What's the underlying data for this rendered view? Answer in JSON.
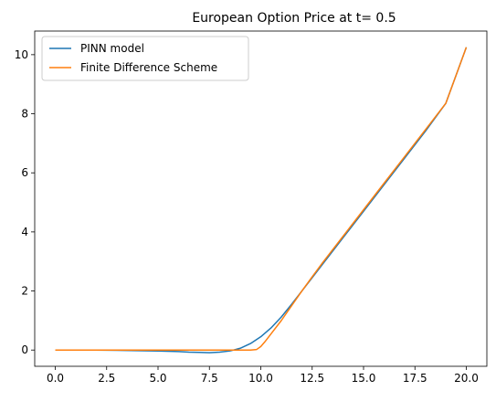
{
  "chart_data": {
    "type": "line",
    "title": "European Option Price at t= 0.5",
    "xlabel": "",
    "ylabel": "",
    "xlim": [
      -1.0,
      21.0
    ],
    "ylim": [
      -0.55,
      10.8
    ],
    "xticks": [
      0.0,
      2.5,
      5.0,
      7.5,
      10.0,
      12.5,
      15.0,
      17.5,
      20.0
    ],
    "xtick_labels": [
      "0.0",
      "2.5",
      "5.0",
      "7.5",
      "10.0",
      "12.5",
      "15.0",
      "17.5",
      "20.0"
    ],
    "yticks": [
      0,
      2,
      4,
      6,
      8,
      10
    ],
    "ytick_labels": [
      "0",
      "2",
      "4",
      "6",
      "8",
      "10"
    ],
    "grid": false,
    "legend_position": "upper-left",
    "series": [
      {
        "name": "PINN model",
        "color": "#1f77b4",
        "x": [
          0,
          1,
          2,
          3,
          4,
          5,
          6,
          6.5,
          7,
          7.5,
          8,
          8.5,
          9,
          9.5,
          10,
          10.5,
          11,
          11.5,
          12,
          12.5,
          13,
          14,
          15,
          16,
          17,
          18,
          19,
          20
        ],
        "y": [
          0.0,
          0.0,
          0.0,
          -0.01,
          -0.02,
          -0.03,
          -0.05,
          -0.07,
          -0.08,
          -0.09,
          -0.07,
          -0.03,
          0.06,
          0.22,
          0.45,
          0.75,
          1.12,
          1.55,
          2.0,
          2.45,
          2.9,
          3.8,
          4.7,
          5.6,
          6.5,
          7.4,
          8.35,
          10.25
        ]
      },
      {
        "name": "Finite Difference Scheme",
        "color": "#ff7f0e",
        "x": [
          0,
          2,
          4,
          6,
          8,
          9,
          9.5,
          9.8,
          10,
          10.2,
          10.5,
          11,
          11.5,
          12,
          12.5,
          13,
          14,
          15,
          16,
          17,
          18,
          19,
          20
        ],
        "y": [
          0.0,
          0.0,
          0.0,
          0.0,
          0.0,
          0.0,
          0.0,
          0.02,
          0.12,
          0.28,
          0.55,
          1.0,
          1.5,
          2.0,
          2.48,
          2.95,
          3.85,
          4.75,
          5.65,
          6.55,
          7.45,
          8.35,
          10.25
        ]
      }
    ]
  }
}
